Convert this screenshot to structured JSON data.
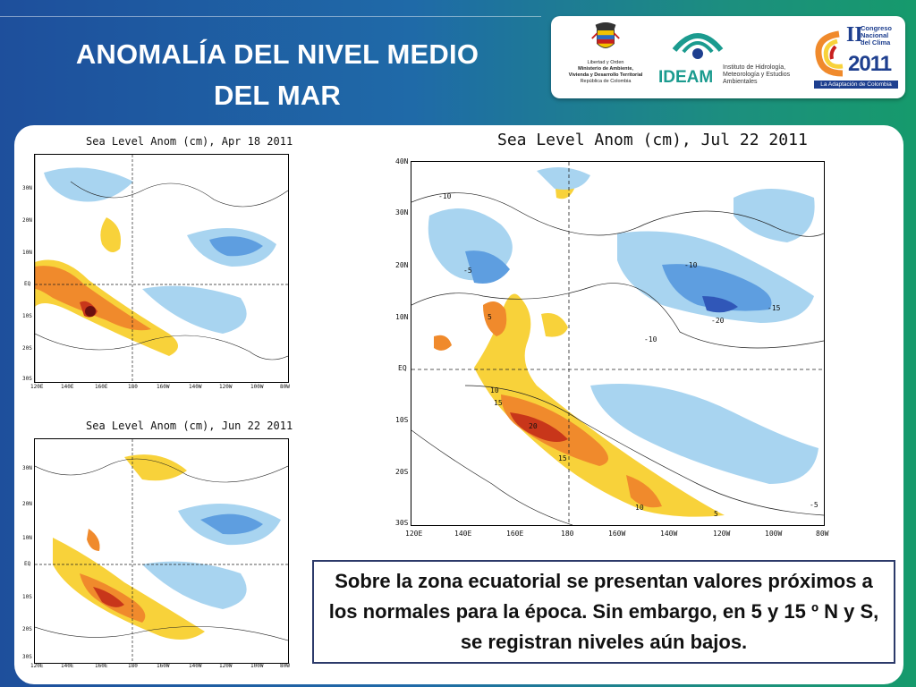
{
  "slide": {
    "title_line1": "ANOMALÍA DEL NIVEL MEDIO",
    "title_line2": "DEL MAR"
  },
  "logos": {
    "ministry_line1": "Libertad y Orden",
    "ministry_line2": "Ministerio de Ambiente,",
    "ministry_line3": "Vivienda y Desarrollo Territorial",
    "ministry_line4": "República de Colombia",
    "ideam_name": "IDEAM",
    "ideam_desc": "Instituto de Hidrología, Meteorología y Estudios Ambientales",
    "congreso_number": "II",
    "congreso_text": "Congreso Nacional del Clima",
    "congreso_year": "2011",
    "congreso_slogan": "La Adaptación de Colombia"
  },
  "maps": [
    {
      "title": "Sea Level Anom (cm), Apr 18 2011",
      "lat_labels": [
        "30N",
        "20N",
        "10N",
        "EQ",
        "10S",
        "20S",
        "30S"
      ],
      "lon_labels": [
        "120E",
        "140E",
        "160E",
        "180",
        "160W",
        "140W",
        "120W",
        "100W",
        "80W"
      ]
    },
    {
      "title": "Sea Level Anom (cm), Jun 22 2011",
      "lat_labels": [
        "30N",
        "20N",
        "10N",
        "EQ",
        "10S",
        "20S",
        "30S"
      ],
      "lon_labels": [
        "120E",
        "140E",
        "160E",
        "180",
        "160W",
        "140W",
        "120W",
        "100W",
        "80W"
      ]
    },
    {
      "title": "Sea Level Anom (cm), Jul 22 2011",
      "lat_labels": [
        "40N",
        "30N",
        "20N",
        "10N",
        "EQ",
        "10S",
        "20S",
        "30S"
      ],
      "lon_labels": [
        "120E",
        "140E",
        "160E",
        "180",
        "160W",
        "140W",
        "120W",
        "100W",
        "80W"
      ],
      "contour_labels": [
        "-10",
        "-5",
        "-10",
        "-15",
        "-20",
        "-10",
        "5",
        "10",
        "15",
        "20",
        "15",
        "10",
        "5",
        "-5"
      ]
    }
  ],
  "colors": {
    "positive_high": "#c8361a",
    "positive_mid": "#f08a2c",
    "positive_low": "#f8d23a",
    "negative_low": "#a8d4f0",
    "negative_mid": "#5e9ee0",
    "negative_high": "#3057b8"
  },
  "callout_text": "Sobre la zona ecuatorial se presentan valores próximos a los normales para la época. Sin embargo, en 5 y 15 º N y S, se registran niveles aún bajos."
}
